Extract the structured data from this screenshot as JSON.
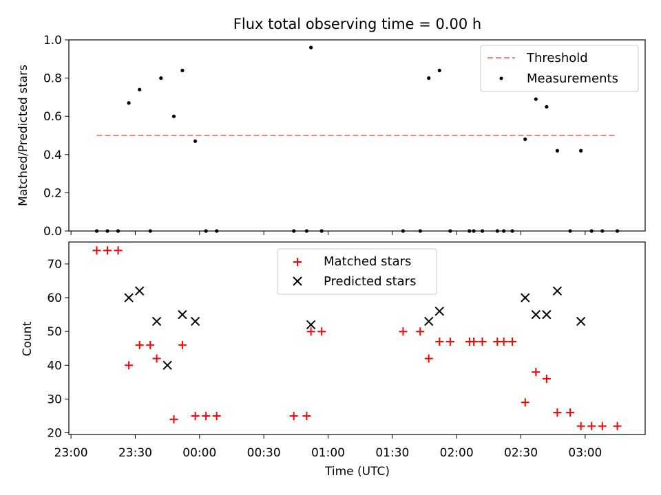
{
  "figure_title": "Flux total observing time = 0.00 h",
  "colors": {
    "threshold": "#ff7f7f",
    "measurements": "#000000",
    "matched": "#ff0000",
    "predicted": "#000000"
  },
  "chart_data": [
    {
      "type": "scatter",
      "title": "Flux total observing time = 0.00 h",
      "ylabel": "Matched/Predicted stars",
      "xlabel": "",
      "ylim": [
        0,
        1.0
      ],
      "xlim": [
        "22:59",
        "03:28"
      ],
      "yticks": [
        "0.0",
        "0.2",
        "0.4",
        "0.6",
        "0.8",
        "1.0"
      ],
      "legend_position": "top-right",
      "series": [
        {
          "name": "Threshold",
          "style": "dashed-line",
          "x": [
            "23:12",
            "03:15"
          ],
          "y": [
            0.5,
            0.5
          ]
        },
        {
          "name": "Measurements",
          "style": "dot",
          "x": [
            "23:12",
            "23:17",
            "23:22",
            "23:27",
            "23:32",
            "23:37",
            "23:42",
            "23:48",
            "23:52",
            "23:58",
            "00:03",
            "00:08",
            "00:44",
            "00:50",
            "00:52",
            "00:57",
            "01:35",
            "01:43",
            "01:47",
            "01:52",
            "01:57",
            "02:06",
            "02:08",
            "02:12",
            "02:19",
            "02:22",
            "02:26",
            "02:32",
            "02:37",
            "02:42",
            "02:47",
            "02:53",
            "02:58",
            "03:03",
            "03:08",
            "03:15"
          ],
          "y": [
            0.0,
            0.0,
            0.0,
            0.67,
            0.74,
            0.0,
            0.8,
            0.6,
            0.84,
            0.47,
            0.0,
            0.0,
            0.0,
            0.0,
            0.96,
            0.0,
            0.0,
            0.0,
            0.8,
            0.84,
            0.0,
            0.0,
            0.0,
            0.0,
            0.0,
            0.0,
            0.0,
            0.48,
            0.69,
            0.65,
            0.42,
            0.0,
            0.42,
            0.0,
            0.0,
            0.0
          ]
        }
      ]
    },
    {
      "type": "scatter",
      "title": "",
      "ylabel": "Count",
      "xlabel": "Time (UTC)",
      "ylim": [
        19.5,
        76.5
      ],
      "xlim": [
        "22:59",
        "03:28"
      ],
      "yticks": [
        "20",
        "30",
        "40",
        "50",
        "60",
        "70"
      ],
      "xticks": [
        "23:00",
        "23:30",
        "00:00",
        "00:30",
        "01:00",
        "01:30",
        "02:00",
        "02:30",
        "03:00"
      ],
      "legend_position": "top-center",
      "series": [
        {
          "name": "Matched stars",
          "style": "plus",
          "x": [
            "23:12",
            "23:17",
            "23:22",
            "23:27",
            "23:32",
            "23:37",
            "23:40",
            "23:48",
            "23:52",
            "23:58",
            "00:03",
            "00:08",
            "00:44",
            "00:50",
            "00:52",
            "00:57",
            "01:35",
            "01:43",
            "01:47",
            "01:52",
            "01:57",
            "02:06",
            "02:08",
            "02:12",
            "02:19",
            "02:22",
            "02:26",
            "02:32",
            "02:37",
            "02:42",
            "02:47",
            "02:53",
            "02:58",
            "03:03",
            "03:08",
            "03:15"
          ],
          "y": [
            74,
            74,
            74,
            40,
            46,
            46,
            42,
            24,
            46,
            25,
            25,
            25,
            25,
            25,
            50,
            50,
            50,
            50,
            42,
            47,
            47,
            47,
            47,
            47,
            47,
            47,
            47,
            29,
            38,
            36,
            26,
            26,
            22,
            22,
            22,
            22
          ]
        },
        {
          "name": "Predicted stars",
          "style": "cross",
          "x": [
            "23:27",
            "23:32",
            "23:40",
            "23:45",
            "23:52",
            "23:58",
            "00:52",
            "01:47",
            "01:52",
            "02:32",
            "02:37",
            "02:42",
            "02:47",
            "02:58"
          ],
          "y": [
            60,
            62,
            53,
            40,
            55,
            53,
            52,
            53,
            56,
            60,
            55,
            55,
            62,
            53
          ]
        }
      ]
    }
  ]
}
